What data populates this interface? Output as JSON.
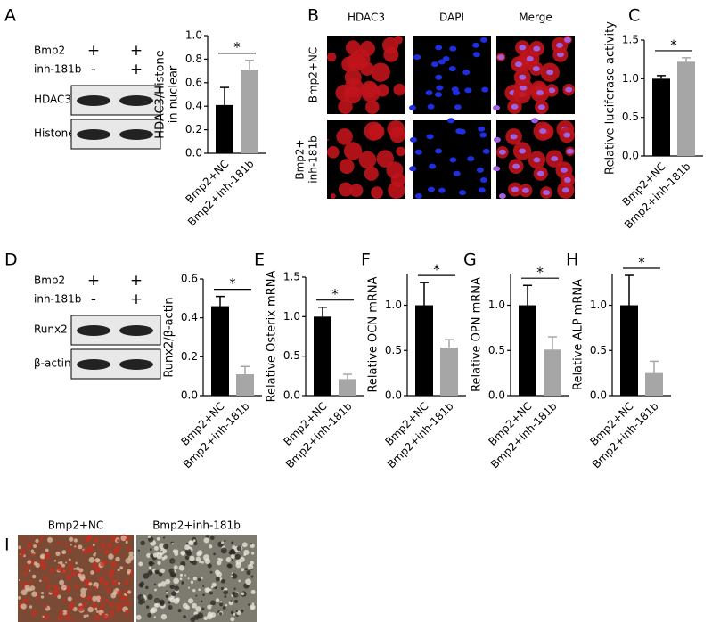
{
  "panel_letters": [
    "A",
    "B",
    "C",
    "D",
    "E",
    "F",
    "G",
    "H",
    "I"
  ],
  "blots": [
    {
      "treatments": [
        {
          "name": "Bmp2",
          "marks": [
            "+",
            "+"
          ]
        },
        {
          "name": "inh-181b",
          "marks": [
            "-",
            "+"
          ]
        }
      ],
      "proteins": [
        "HDAC3",
        "Histone"
      ]
    },
    {
      "treatments": [
        {
          "name": "Bmp2",
          "marks": [
            "+",
            "+"
          ]
        },
        {
          "name": "inh-181b",
          "marks": [
            "-",
            "+"
          ]
        }
      ],
      "proteins": [
        "Runx2",
        "β-actin"
      ]
    }
  ],
  "micrographs": {
    "columns": [
      "HDAC3",
      "DAPI",
      "Merge"
    ],
    "rows": [
      [
        "Bmp2+NC"
      ],
      [
        "Bmp2+",
        "inh-181b"
      ]
    ]
  },
  "staining": {
    "labels": [
      "Bmp2+NC",
      "Bmp2+inh-181b"
    ]
  },
  "chart_data": [
    {
      "type": "bar",
      "ylabel": [
        "HDAC3/Histone",
        "in nuclear"
      ],
      "categories": [
        "Bmp2+NC",
        "Bmp2+inh-181b"
      ],
      "values": [
        0.41,
        0.71
      ],
      "errors": [
        0.15,
        0.08
      ],
      "colors": [
        "#000000",
        "#a6a6a6"
      ],
      "ylim": [
        0,
        1.0
      ],
      "yticks": [
        {
          "value": 0,
          "label": "0.0"
        },
        0.2,
        0.4,
        0.6,
        0.8,
        {
          "value": 1.0,
          "label": "1.0"
        }
      ],
      "annotation": "*"
    },
    {
      "type": "bar",
      "ylabel": [
        "Relative luciferase activity"
      ],
      "categories": [
        "Bmp2+NC",
        "Bmp2+inh-181b"
      ],
      "values": [
        1.0,
        1.22
      ],
      "errors": [
        0.04,
        0.05
      ],
      "colors": [
        "#000000",
        "#a6a6a6"
      ],
      "ylim": [
        0,
        1.5
      ],
      "yticks": [
        {
          "value": 0,
          "label": "0.0"
        },
        0.5,
        {
          "value": 1.0,
          "label": "1.0"
        },
        1.5
      ],
      "annotation": "*"
    },
    {
      "type": "bar",
      "ylabel": [
        "Runx2/β-actin"
      ],
      "categories": [
        "Bmp2+NC",
        "Bmp2+inh-181b"
      ],
      "values": [
        0.46,
        0.11
      ],
      "errors": [
        0.05,
        0.04
      ],
      "colors": [
        "#000000",
        "#a6a6a6"
      ],
      "ylim": [
        0,
        0.6
      ],
      "yticks": [
        {
          "value": 0,
          "label": "0.0"
        },
        0.2,
        0.4,
        0.6
      ],
      "annotation": "*"
    },
    {
      "type": "bar",
      "ylabel": [
        "Relative Osterix mRNA"
      ],
      "categories": [
        "Bmp2+NC",
        "Bmp2+inh-181b"
      ],
      "values": [
        1.0,
        0.21
      ],
      "errors": [
        0.12,
        0.06
      ],
      "colors": [
        "#000000",
        "#a6a6a6"
      ],
      "ylim": [
        0,
        1.5
      ],
      "yticks": [
        {
          "value": 0,
          "label": "0.0"
        },
        0.5,
        {
          "value": 1.0,
          "label": "1.0"
        },
        1.5
      ],
      "annotation": "*"
    },
    {
      "type": "bar",
      "ylabel": [
        "Relative OCN mRNA"
      ],
      "categories": [
        "Bmp2+NC",
        "Bmp2+inh-181b"
      ],
      "values": [
        1.0,
        0.53
      ],
      "errors": [
        0.25,
        0.09
      ],
      "colors": [
        "#000000",
        "#a6a6a6"
      ],
      "ylim": [
        0,
        1.35
      ],
      "yticks": [
        {
          "value": 0,
          "label": "0.0"
        },
        0.5,
        {
          "value": 1.0,
          "label": "1.0"
        }
      ],
      "annotation": "*"
    },
    {
      "type": "bar",
      "ylabel": [
        "Relative OPN mRNA"
      ],
      "categories": [
        "Bmp2+NC",
        "Bmp2+inh-181b"
      ],
      "values": [
        1.0,
        0.51
      ],
      "errors": [
        0.22,
        0.14
      ],
      "colors": [
        "#000000",
        "#a6a6a6"
      ],
      "ylim": [
        0,
        1.35
      ],
      "yticks": [
        {
          "value": 0,
          "label": "0.0"
        },
        0.5,
        {
          "value": 1.0,
          "label": "1.0"
        }
      ],
      "annotation": "*"
    },
    {
      "type": "bar",
      "ylabel": [
        "Relative ALP mRNA"
      ],
      "categories": [
        "Bmp2+NC",
        "Bmp2+inh-181b"
      ],
      "values": [
        1.0,
        0.25
      ],
      "errors": [
        0.33,
        0.13
      ],
      "colors": [
        "#000000",
        "#a6a6a6"
      ],
      "ylim": [
        0,
        1.35
      ],
      "yticks": [
        {
          "value": 0,
          "label": "0.0"
        },
        0.5,
        {
          "value": 1.0,
          "label": "1.0"
        }
      ],
      "annotation": "*"
    }
  ]
}
